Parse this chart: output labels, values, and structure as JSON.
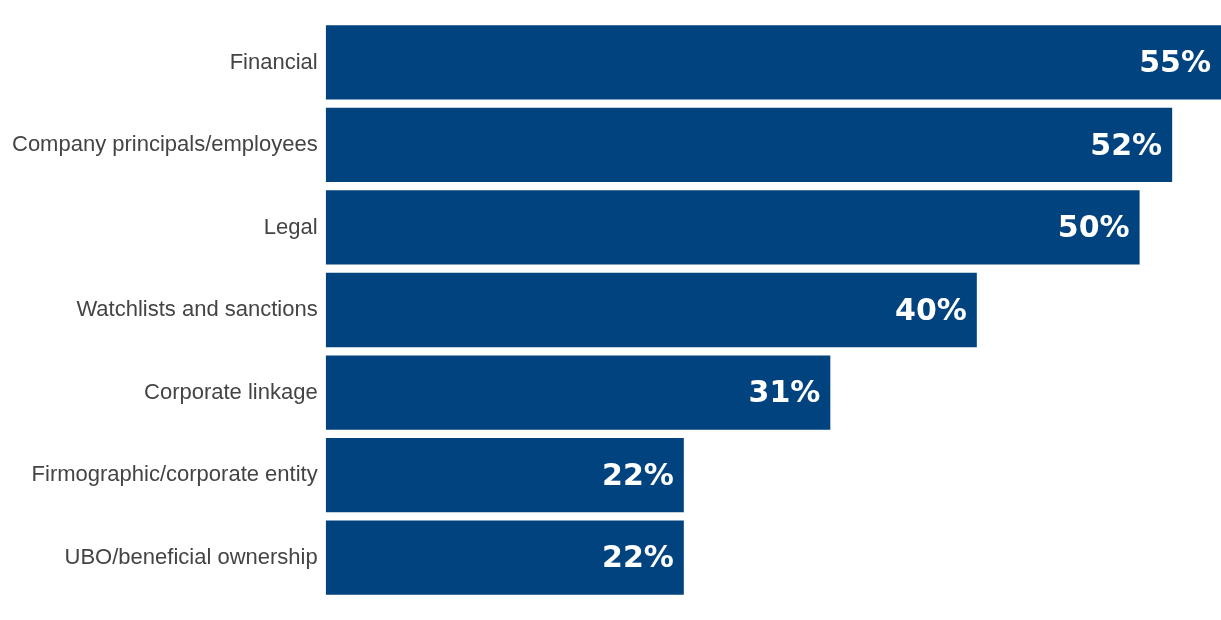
{
  "chart_data": {
    "type": "bar",
    "orientation": "horizontal",
    "categories": [
      "Financial",
      "Company principals/employees",
      "Legal",
      "Watchlists and sanctions",
      "Corporate linkage",
      "Firmographic/corporate entity",
      "UBO/beneficial ownership"
    ],
    "values": [
      55,
      52,
      50,
      40,
      31,
      22,
      22
    ],
    "value_labels": [
      "55%",
      "52%",
      "50%",
      "40%",
      "31%",
      "22%",
      "22%"
    ],
    "color": "#00437f",
    "xlim": [
      0,
      55
    ],
    "tick_labels": "y"
  }
}
